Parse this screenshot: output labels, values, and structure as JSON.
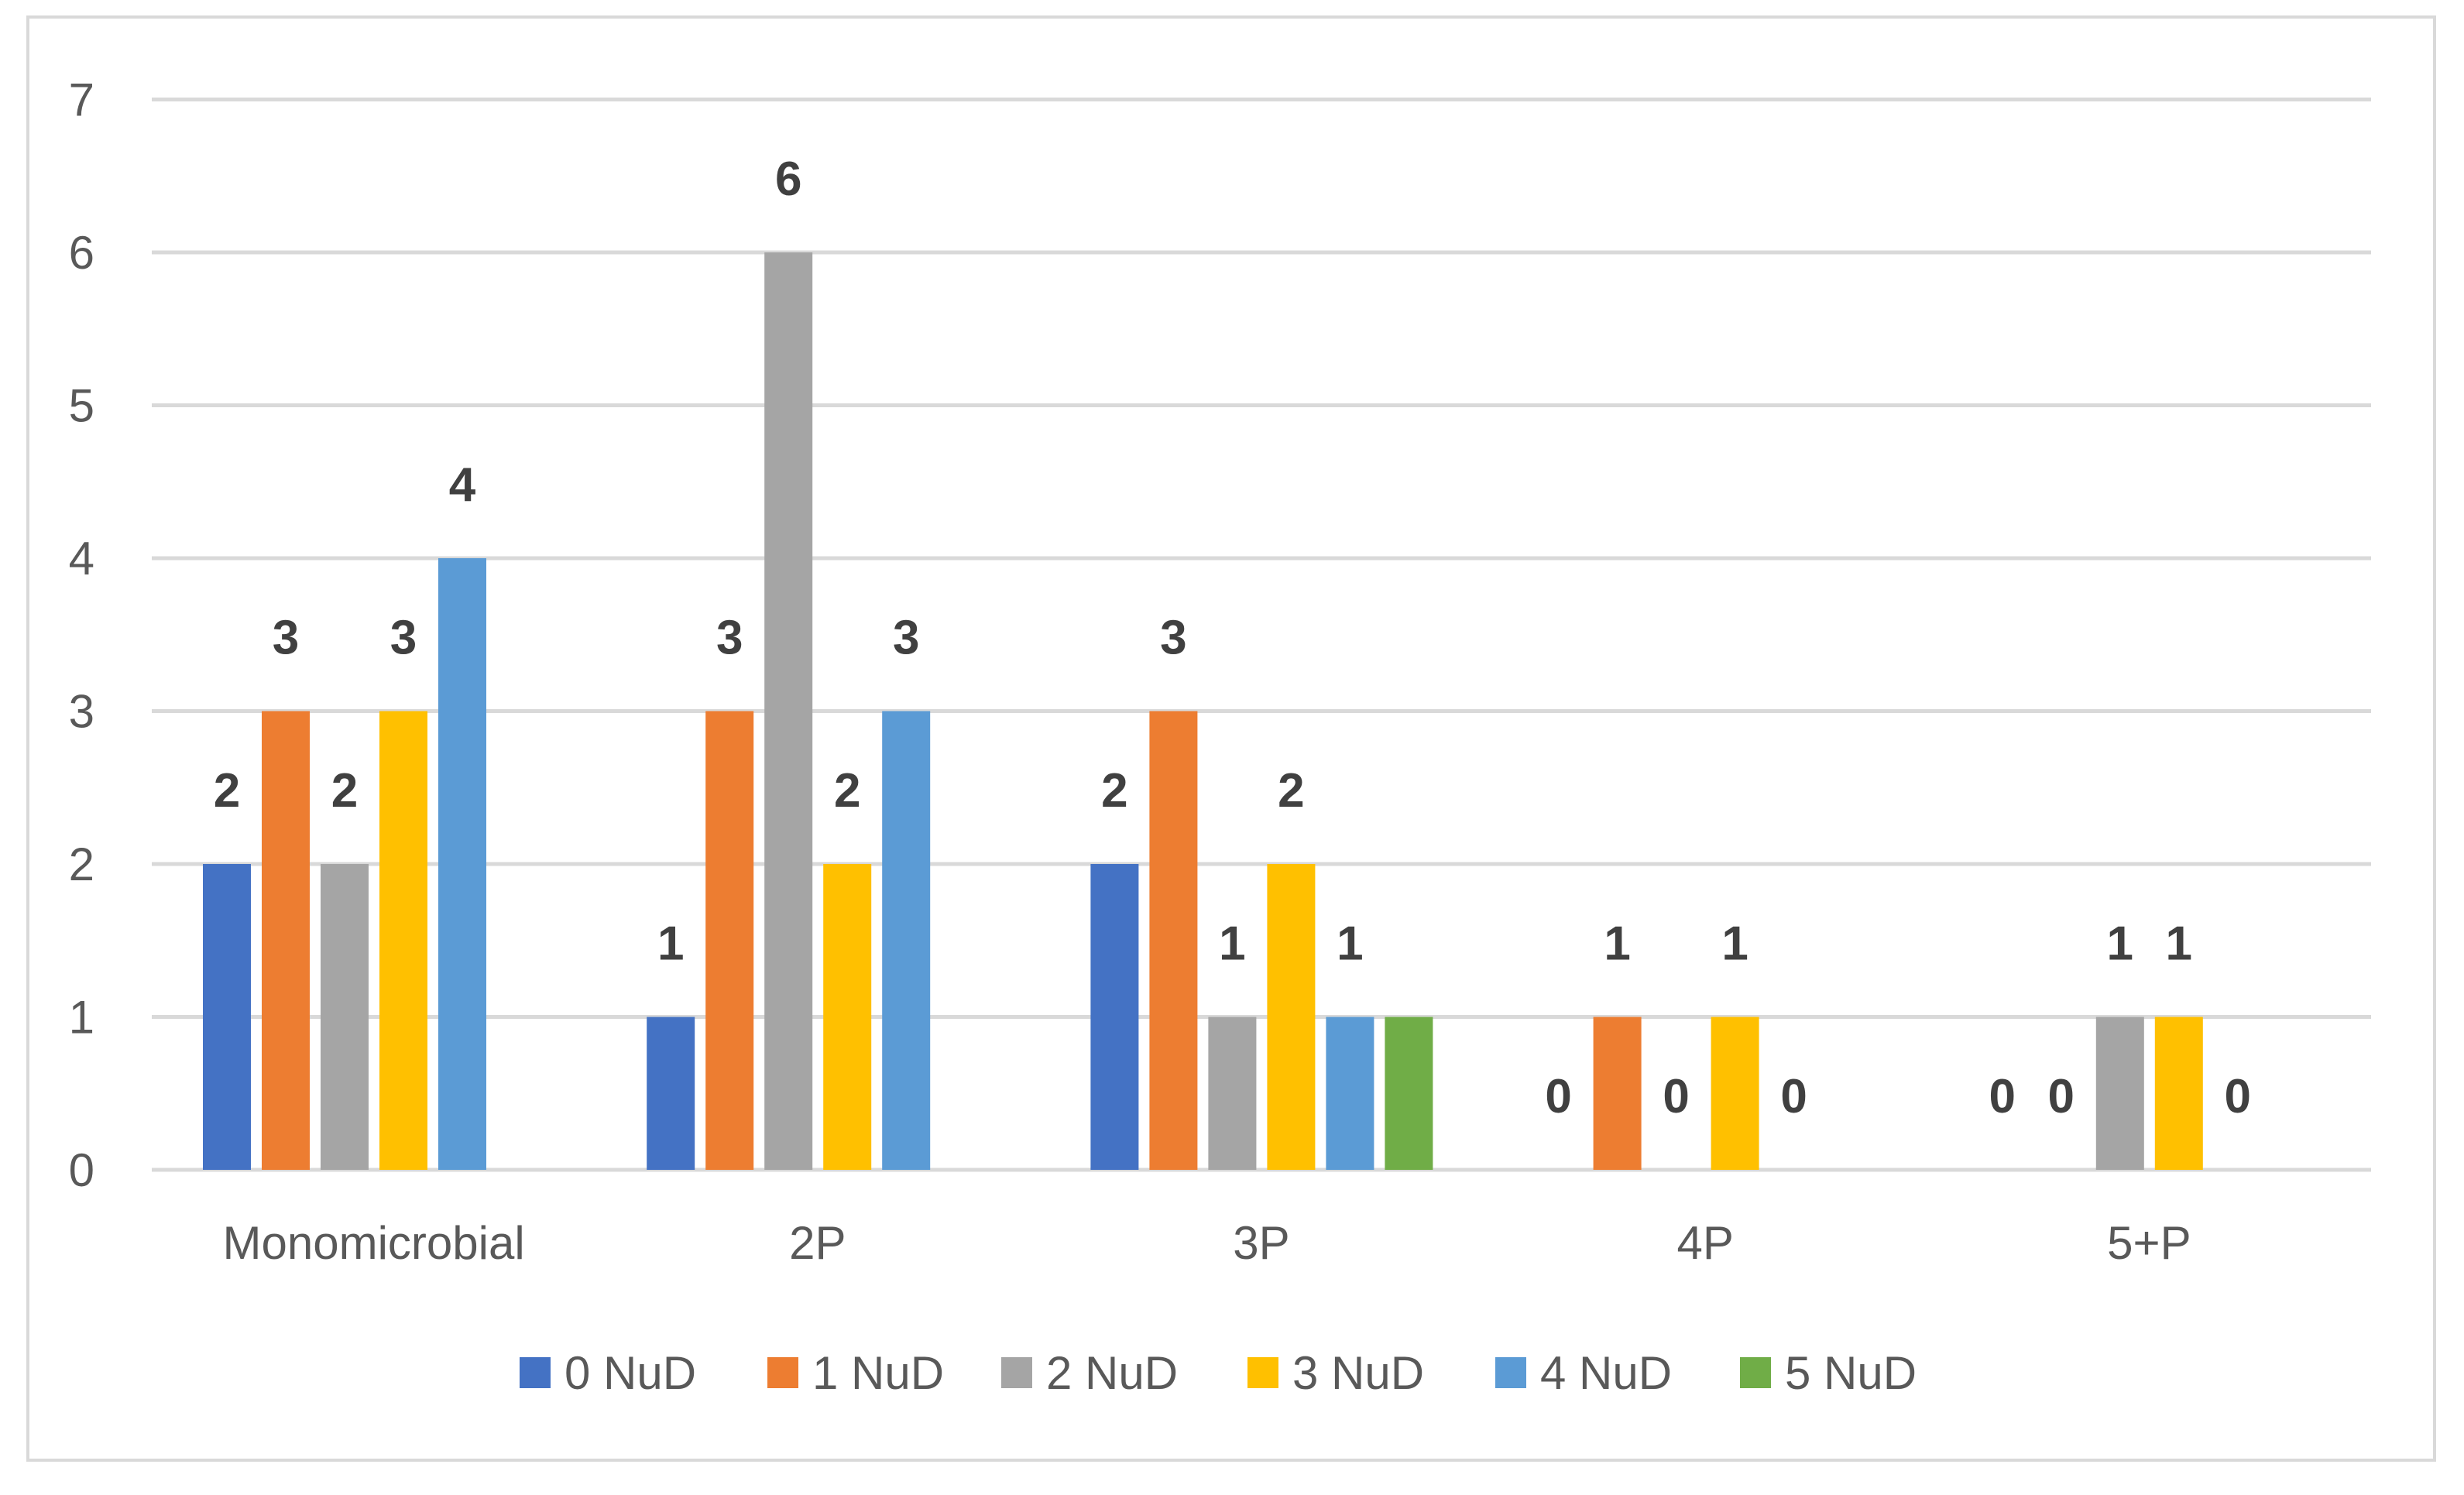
{
  "chart_data": {
    "type": "bar",
    "categories": [
      "Monomicrobial",
      "2P",
      "3P",
      "4P",
      "5+P"
    ],
    "series": [
      {
        "name": "0 NuD",
        "color": "#4472c4",
        "values": [
          2,
          1,
          2,
          0,
          0
        ]
      },
      {
        "name": "1 NuD",
        "color": "#ed7d31",
        "values": [
          3,
          3,
          3,
          1,
          0
        ]
      },
      {
        "name": "2 NuD",
        "color": "#a5a5a5",
        "values": [
          2,
          6,
          1,
          0,
          1
        ]
      },
      {
        "name": "3 NuD",
        "color": "#ffc000",
        "values": [
          3,
          2,
          2,
          1,
          1
        ]
      },
      {
        "name": "4 NuD",
        "color": "#5b9bd5",
        "values": [
          4,
          3,
          1,
          0,
          0
        ]
      },
      {
        "name": "5  NuD",
        "color": "#70ad47",
        "values": [
          null,
          null,
          1,
          null,
          null
        ]
      }
    ],
    "data_labels": [
      [
        "2",
        "3",
        "2",
        "3",
        "4",
        null
      ],
      [
        "1",
        "3",
        "6",
        "2",
        "3",
        null
      ],
      [
        "2",
        "3",
        "1",
        "2",
        "1",
        null
      ],
      [
        "0",
        "1",
        "0",
        "1",
        "0",
        null
      ],
      [
        "0",
        "0",
        "1",
        "1",
        "0",
        null
      ]
    ],
    "y_ticks": [
      "0",
      "1",
      "2",
      "3",
      "4",
      "5",
      "6",
      "7"
    ],
    "ylim": [
      0,
      7
    ],
    "grid": true,
    "legend_position": "bottom",
    "gridline_color": "#d9d9d9"
  }
}
